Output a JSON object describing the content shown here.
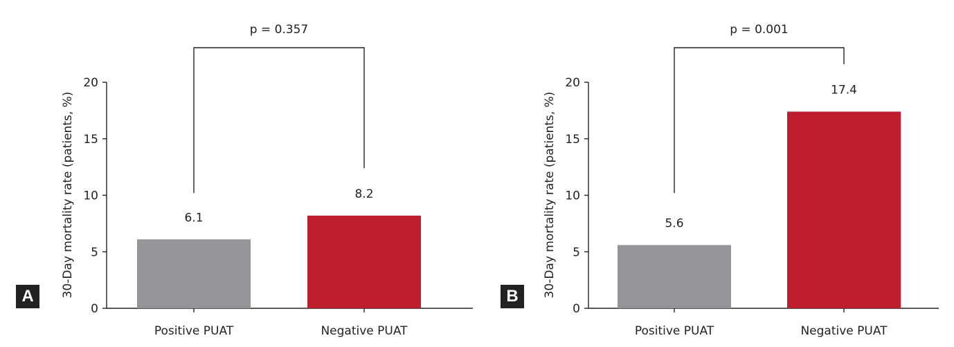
{
  "chart_data": [
    {
      "type": "bar",
      "panel_label": "A",
      "ylabel": "30-Day mortality rate (patients, %)",
      "ylim": [
        0,
        20
      ],
      "yticks": [
        0,
        5,
        10,
        15,
        20
      ],
      "categories": [
        "Positive PUAT",
        "Negative PUAT"
      ],
      "values": [
        6.1,
        8.2
      ],
      "value_labels": [
        "6.1",
        "8.2"
      ],
      "colors": [
        "#939598",
        "#be1e2d"
      ],
      "significance": {
        "label": "p = 0.357",
        "left_drop_to": 10.2,
        "right_drop_to": 12.4
      }
    },
    {
      "type": "bar",
      "panel_label": "B",
      "ylabel": "30-Day mortality rate (patients, %)",
      "ylim": [
        0,
        20
      ],
      "yticks": [
        0,
        5,
        10,
        15,
        20
      ],
      "categories": [
        "Positive PUAT",
        "Negative PUAT"
      ],
      "values": [
        5.6,
        17.4
      ],
      "value_labels": [
        "5.6",
        "17.4"
      ],
      "colors": [
        "#939598",
        "#be1e2d"
      ],
      "significance": {
        "label": "p = 0.001",
        "left_drop_to": 10.2,
        "right_drop_to": 21.6
      }
    }
  ]
}
